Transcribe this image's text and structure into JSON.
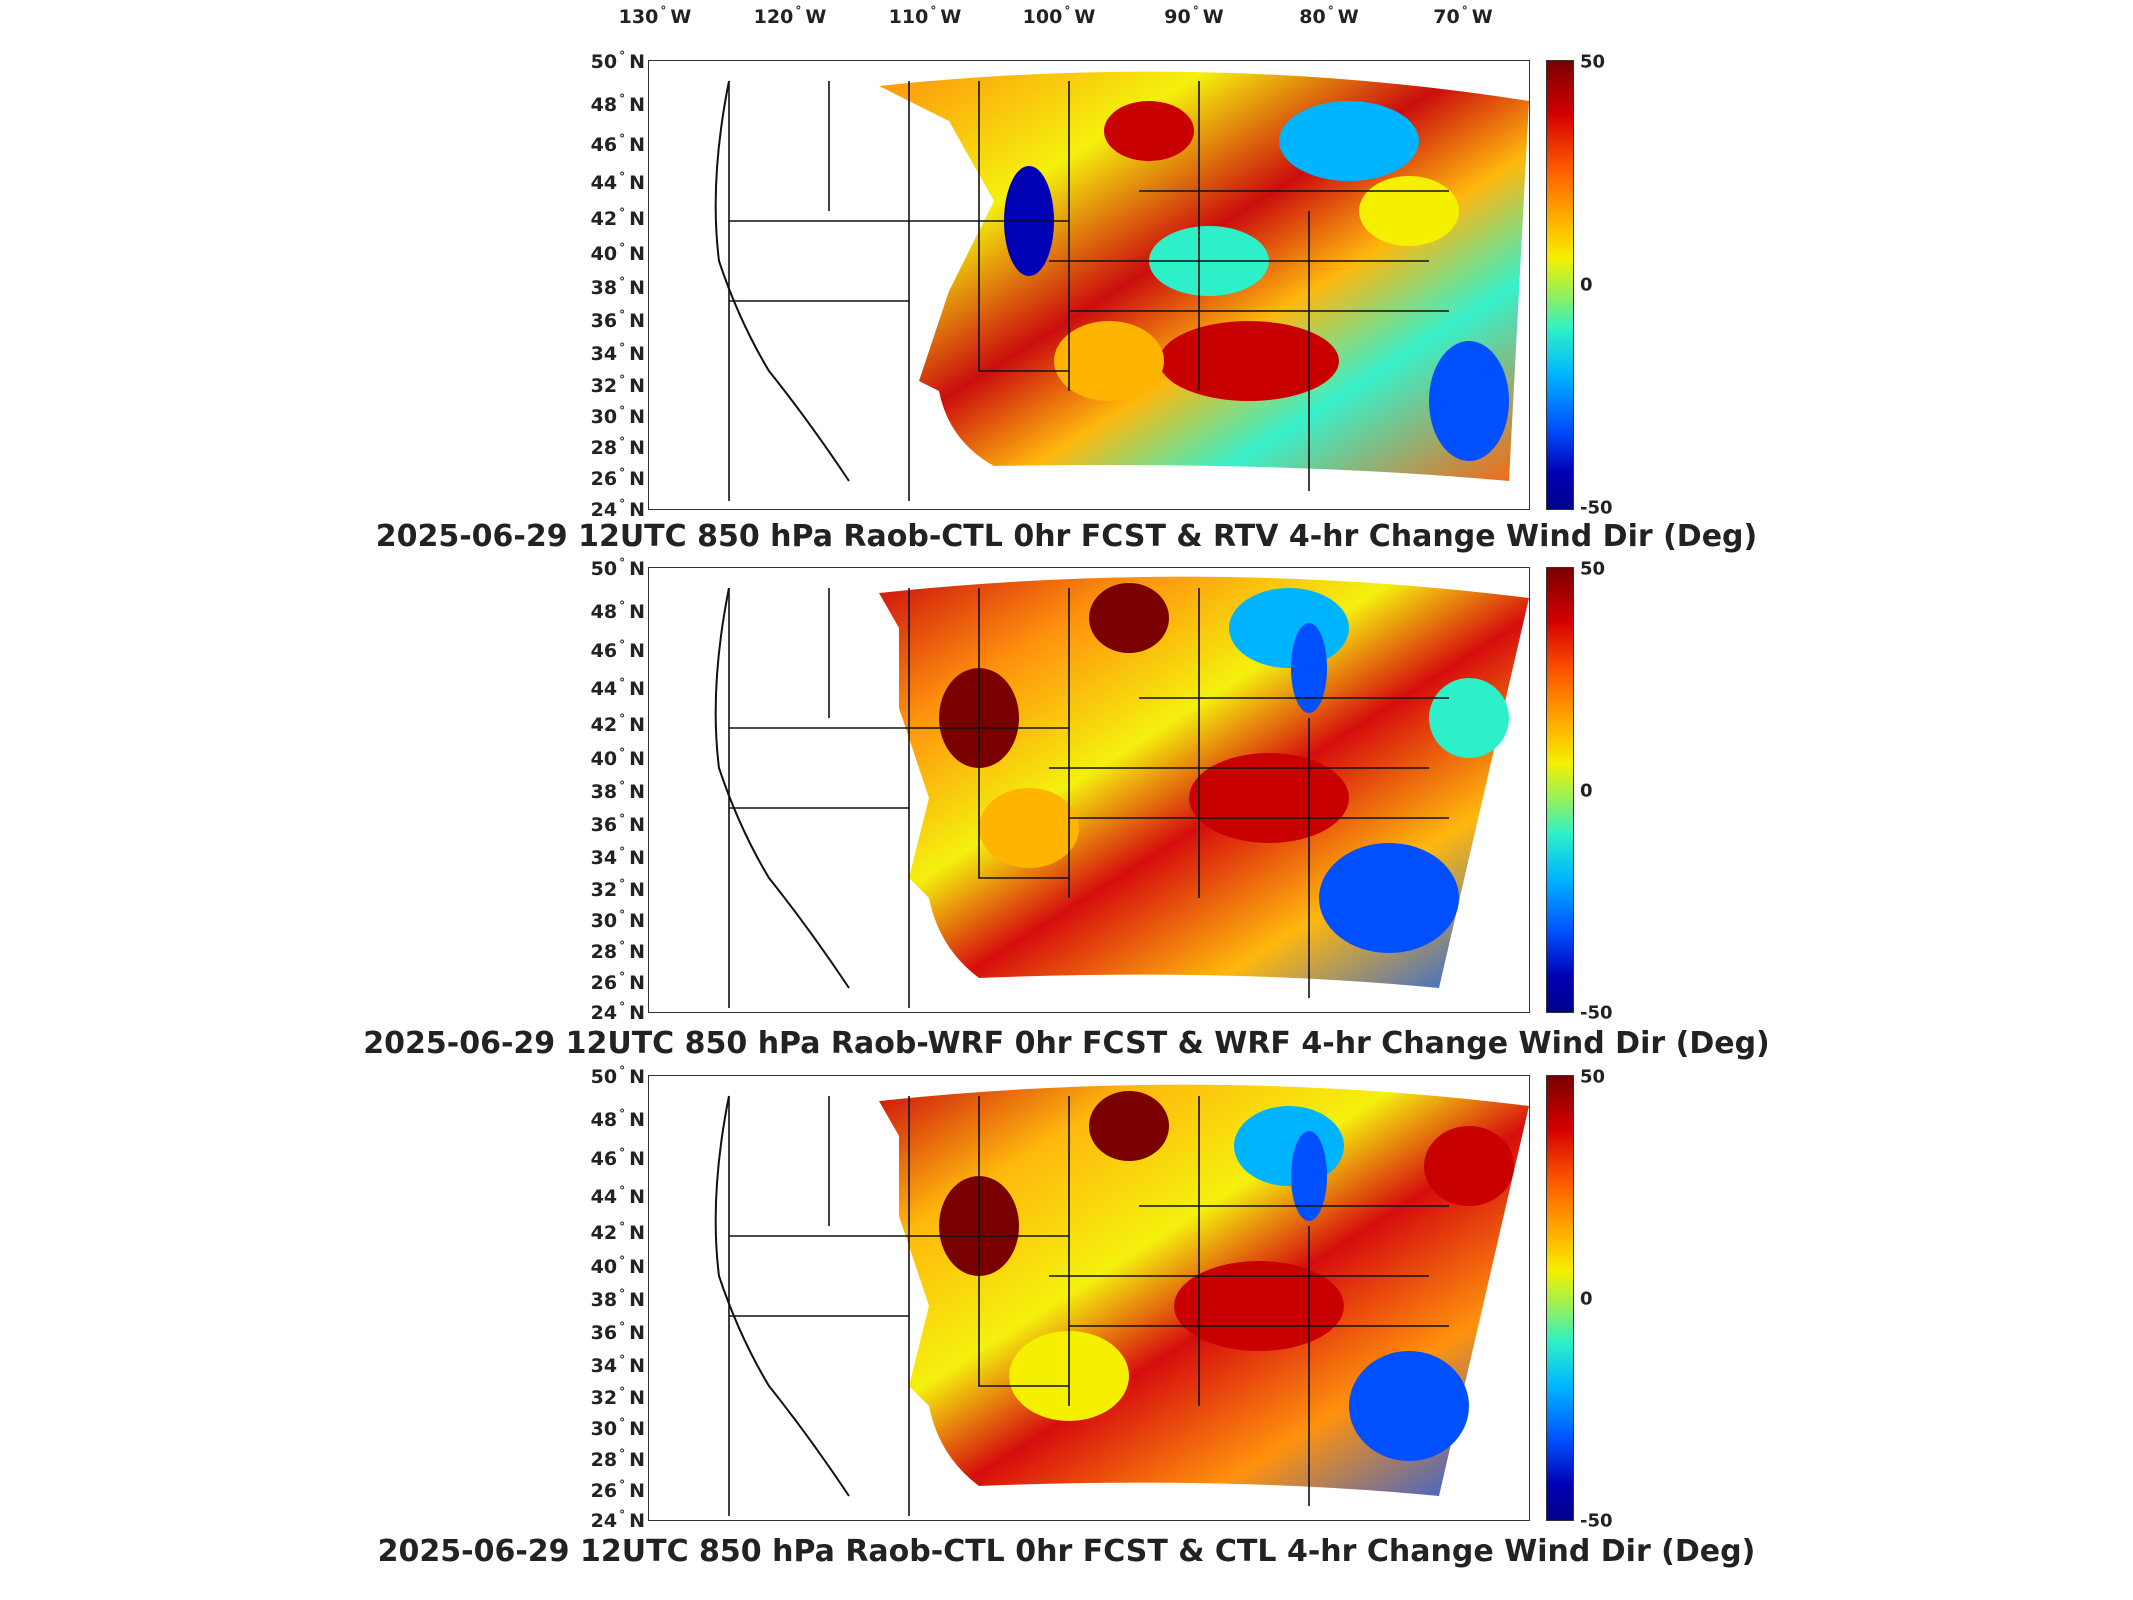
{
  "lon_labels": [
    "130",
    "120",
    "110",
    "100",
    "90",
    "80",
    "70"
  ],
  "lon_suffix": "W",
  "lat_labels": [
    "50",
    "48",
    "46",
    "44",
    "42",
    "40",
    "38",
    "36",
    "34",
    "32",
    "30",
    "28",
    "26",
    "24"
  ],
  "lat_suffix": "N",
  "degree_symbol": "°",
  "colorbar": {
    "max": "50",
    "mid": "0",
    "min": "-50"
  },
  "colors": {
    "max": "#7a0000",
    "mid": "#f4f000",
    "min": "#00008c"
  },
  "panels": [
    {
      "title": "2025-06-29 12UTC 850 hPa Raob-CTL 0hr FCST & RTV 4-hr Change Wind Dir (Deg)"
    },
    {
      "title": "2025-06-29 12UTC 850 hPa Raob-WRF 0hr FCST & WRF 4-hr Change Wind Dir (Deg)"
    },
    {
      "title": "2025-06-29 12UTC 850 hPa Raob-CTL 0hr FCST & CTL 4-hr Change Wind Dir (Deg)"
    }
  ]
}
